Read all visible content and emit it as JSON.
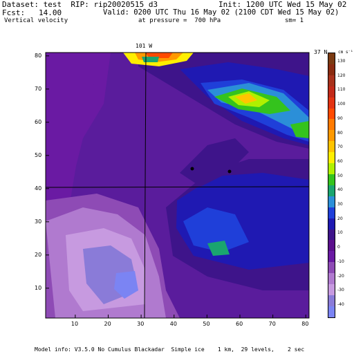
{
  "header": {
    "line1_left": "Dataset: test  RIP: rip20020515 d3",
    "line1_right": "Init: 1200 UTC Wed 15 May 02",
    "line2_left": "Fcst:   14.00",
    "line2_right": "Valid: 0200 UTC Thu 16 May 02 (2100 CDT Wed 15 May 02)",
    "line3_left": "Vertical velocity",
    "line3_mid": "at pressure =  700 hPa",
    "line3_right": "sm= 1"
  },
  "map_labels": {
    "longitude": "101 W",
    "latitude": "37 N",
    "units": "cm s⁻¹"
  },
  "x_ticks": [
    "10",
    "20",
    "30",
    "40",
    "50",
    "60",
    "70",
    "80"
  ],
  "y_ticks": [
    "10",
    "20",
    "30",
    "40",
    "50",
    "60",
    "70",
    "80"
  ],
  "colorbar": {
    "labels": [
      "130",
      "120",
      "110",
      "100",
      "90",
      "80",
      "70",
      "60",
      "50",
      "40",
      "30",
      "20",
      "10",
      "0",
      "-10",
      "-20",
      "-30",
      "-40"
    ],
    "colors": [
      "#7b3a12",
      "#8a2b10",
      "#a8321c",
      "#c22a1a",
      "#e23312",
      "#ff4a00",
      "#ff7a00",
      "#ff9900",
      "#ffc400",
      "#ffee00",
      "#b0f000",
      "#34c31d",
      "#1aa56f",
      "#2b8fd8",
      "#1f3fd9",
      "#1f19b2",
      "#3e148a",
      "#5b0f8c",
      "#6a1aa3",
      "#8e4bb5",
      "#b07acf",
      "#c79ae0",
      "#8a7bd8",
      "#7b84f3"
    ]
  },
  "footer": "Model info: V3.5.0 No Cumulus Blackadar  Simple ice    1 km,  29 levels,    2 sec"
}
